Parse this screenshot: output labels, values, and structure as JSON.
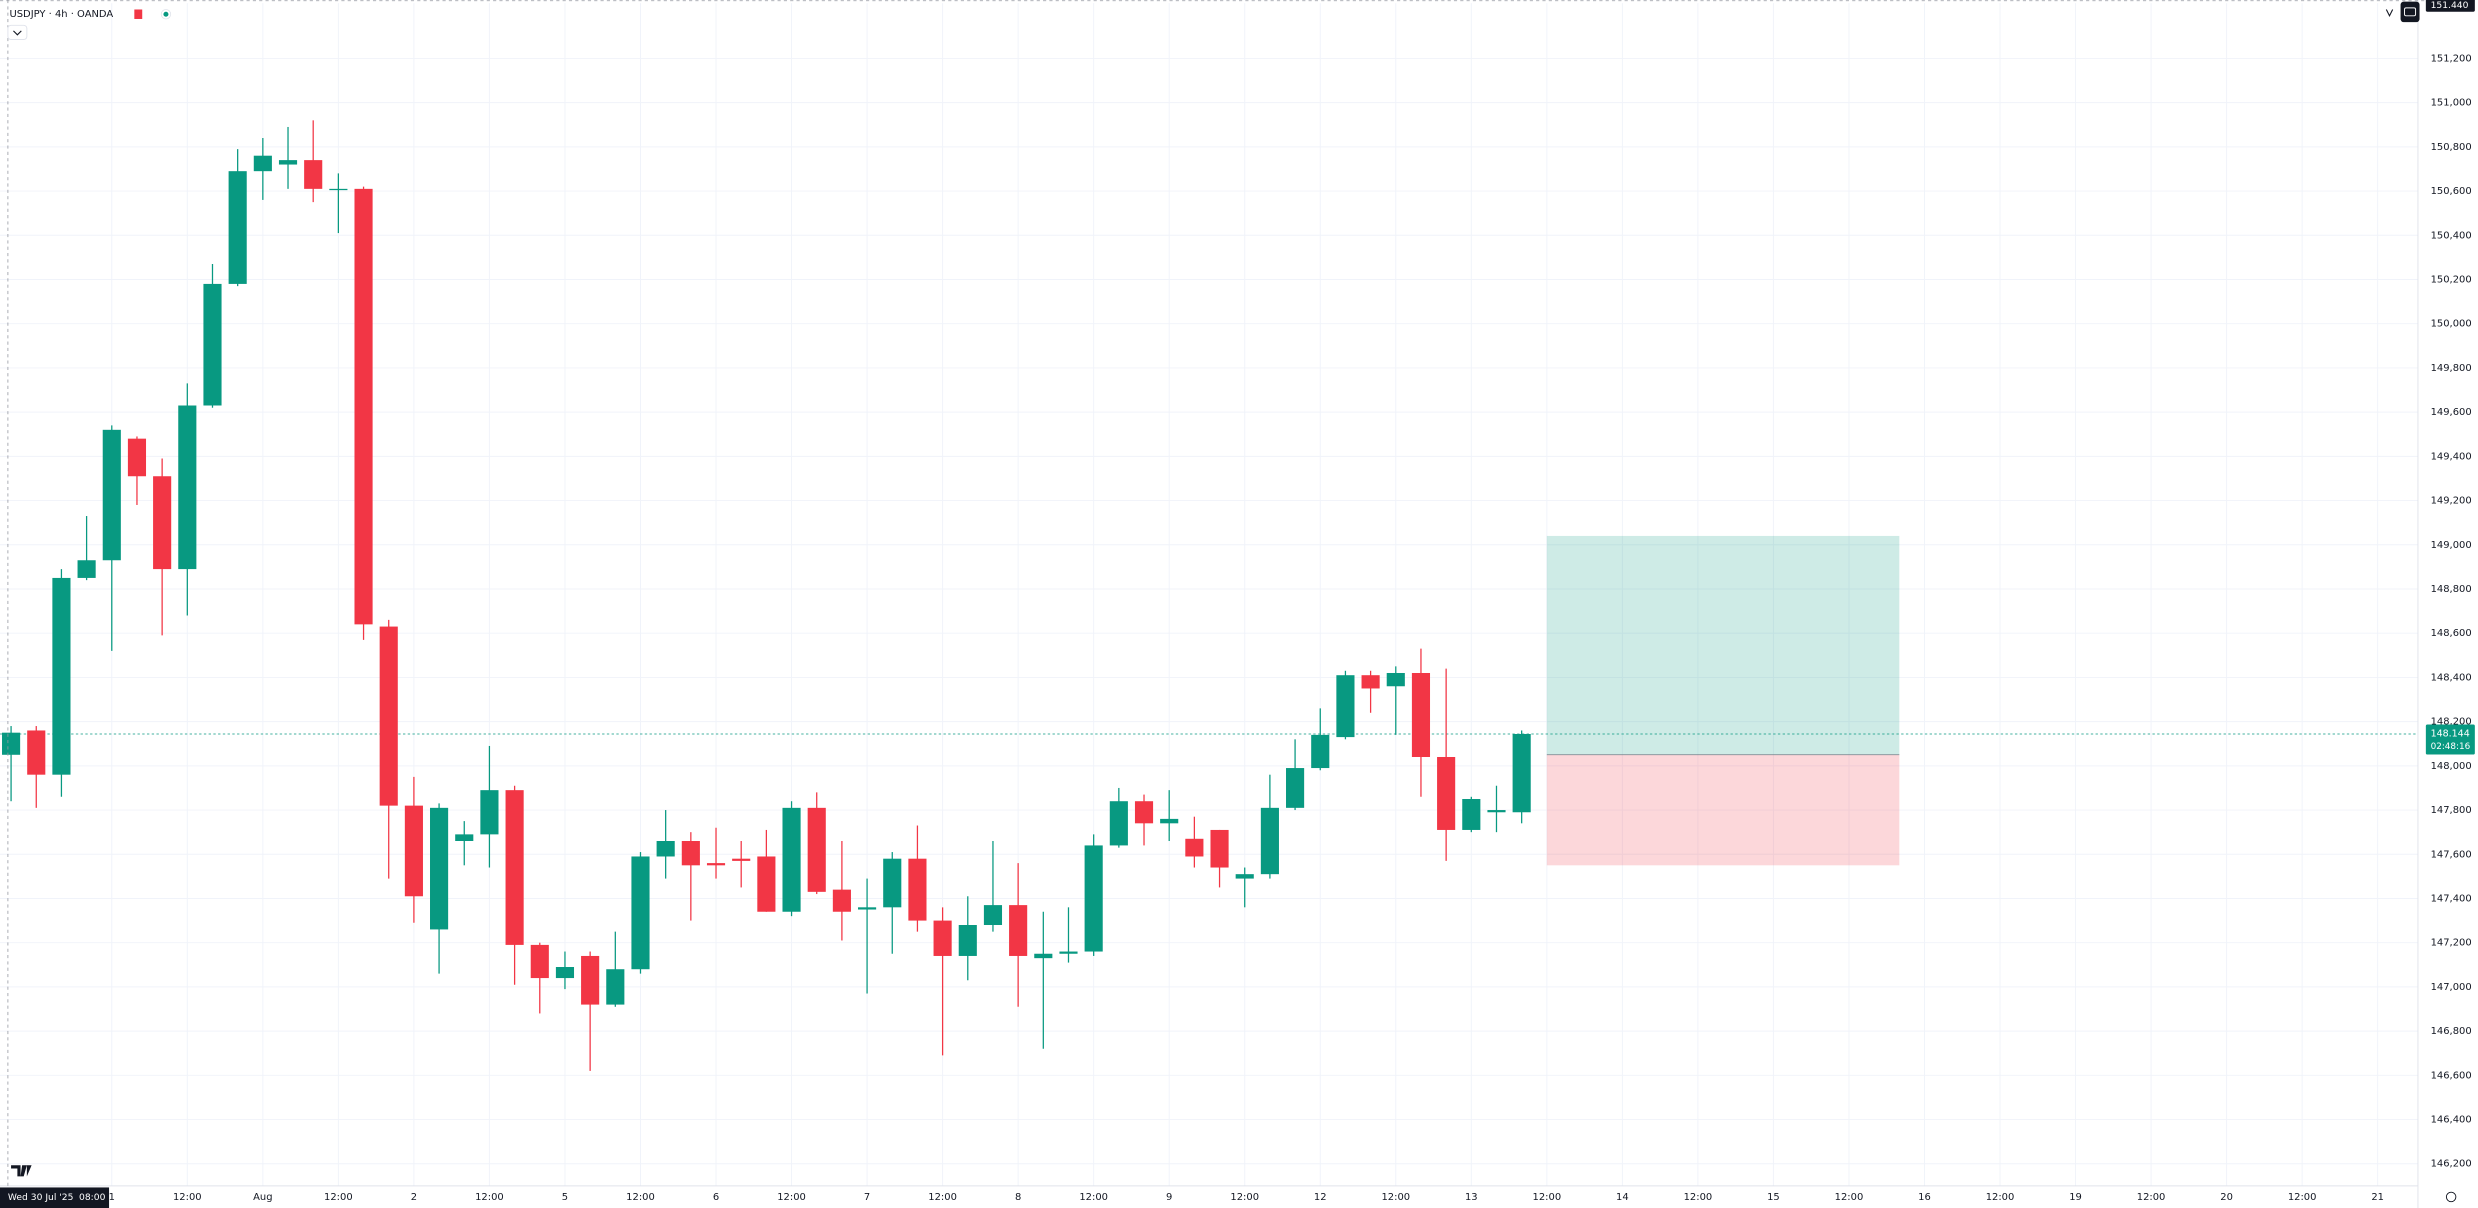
{
  "chart_data": {
    "type": "candlestick",
    "title": "USDJPY · 4h · OANDA",
    "up_color": "#089981",
    "down_color": "#f23645",
    "open": [
      148.05,
      148.16,
      147.96,
      148.85,
      148.93,
      149.48,
      149.31,
      148.89,
      149.63,
      150.18,
      150.69,
      150.72,
      150.74,
      150.61,
      150.61,
      148.63,
      147.82,
      147.26,
      147.66,
      147.69,
      147.89,
      147.19,
      147.04,
      147.14,
      146.92,
      147.08,
      147.59,
      147.66,
      147.56,
      147.58,
      147.59,
      147.34,
      147.81,
      147.44,
      147.35,
      147.36,
      147.58,
      147.3,
      147.14,
      147.28,
      147.37,
      147.13,
      147.15,
      147.16,
      147.64,
      147.84,
      147.74,
      147.67,
      147.71,
      147.49,
      147.51,
      147.81,
      147.99,
      148.13,
      148.41,
      148.36,
      148.42,
      148.04,
      147.71,
      147.79,
      147.79
    ],
    "high": [
      148.18,
      148.18,
      148.89,
      149.13,
      149.54,
      149.49,
      149.39,
      149.73,
      150.27,
      150.79,
      150.84,
      150.89,
      150.92,
      150.68,
      150.62,
      148.66,
      147.95,
      147.83,
      147.75,
      148.09,
      147.91,
      147.2,
      147.16,
      147.16,
      147.25,
      147.61,
      147.8,
      147.7,
      147.72,
      147.66,
      147.71,
      147.84,
      147.88,
      147.66,
      147.49,
      147.61,
      147.73,
      147.36,
      147.41,
      147.66,
      147.56,
      147.34,
      147.36,
      147.69,
      147.9,
      147.87,
      147.89,
      147.77,
      147.71,
      147.54,
      147.96,
      148.12,
      148.26,
      148.43,
      148.43,
      148.45,
      148.53,
      148.44,
      147.86,
      147.91,
      148.16
    ],
    "low": [
      147.84,
      147.81,
      147.86,
      148.84,
      148.52,
      149.18,
      148.59,
      148.68,
      149.62,
      150.17,
      150.56,
      150.61,
      150.55,
      150.41,
      148.57,
      147.49,
      147.29,
      147.06,
      147.55,
      147.54,
      147.01,
      146.88,
      146.99,
      146.62,
      146.91,
      147.06,
      147.49,
      147.3,
      147.49,
      147.45,
      147.34,
      147.32,
      147.42,
      147.21,
      146.97,
      147.15,
      147.25,
      146.69,
      147.03,
      147.25,
      146.91,
      146.72,
      147.11,
      147.14,
      147.63,
      147.64,
      147.66,
      147.54,
      147.45,
      147.36,
      147.49,
      147.8,
      147.98,
      148.12,
      148.24,
      148.14,
      147.86,
      147.57,
      147.7,
      147.7,
      147.74
    ],
    "close": [
      148.15,
      147.96,
      148.85,
      148.93,
      149.52,
      149.31,
      148.89,
      149.63,
      150.18,
      150.69,
      150.76,
      150.74,
      150.61,
      150.61,
      148.64,
      147.82,
      147.41,
      147.81,
      147.69,
      147.89,
      147.19,
      147.04,
      147.09,
      146.92,
      147.08,
      147.59,
      147.66,
      147.55,
      147.55,
      147.57,
      147.34,
      147.81,
      147.43,
      147.34,
      147.36,
      147.58,
      147.3,
      147.14,
      147.28,
      147.37,
      147.14,
      147.15,
      147.16,
      147.64,
      147.84,
      147.74,
      147.76,
      147.59,
      147.54,
      147.51,
      147.81,
      147.99,
      148.14,
      148.41,
      148.35,
      148.42,
      148.04,
      147.71,
      147.85,
      147.8,
      148.144
    ],
    "xlim": [
      -0.44,
      95.6
    ],
    "xticks": [
      {
        "value": 4,
        "label": "1"
      },
      {
        "value": 7,
        "label": "12:00"
      },
      {
        "value": 10,
        "label": "Aug"
      },
      {
        "value": 13,
        "label": "12:00"
      },
      {
        "value": 16,
        "label": "2"
      },
      {
        "value": 19,
        "label": "12:00"
      },
      {
        "value": 22,
        "label": "5"
      },
      {
        "value": 25,
        "label": "12:00"
      },
      {
        "value": 28,
        "label": "6"
      },
      {
        "value": 31,
        "label": "12:00"
      },
      {
        "value": 34,
        "label": "7"
      },
      {
        "value": 37,
        "label": "12:00"
      },
      {
        "value": 40,
        "label": "8"
      },
      {
        "value": 43,
        "label": "12:00"
      },
      {
        "value": 46,
        "label": "9"
      },
      {
        "value": 49,
        "label": "12:00"
      },
      {
        "value": 52,
        "label": "12"
      },
      {
        "value": 55,
        "label": "12:00"
      },
      {
        "value": 58,
        "label": "13"
      },
      {
        "value": 61,
        "label": "12:00"
      },
      {
        "value": 64,
        "label": "14"
      },
      {
        "value": 67,
        "label": "12:00"
      },
      {
        "value": 70,
        "label": "15"
      },
      {
        "value": 73,
        "label": "12:00"
      },
      {
        "value": 76,
        "label": "16"
      },
      {
        "value": 79,
        "label": "12:00"
      },
      {
        "value": 82,
        "label": "19"
      },
      {
        "value": 85,
        "label": "12:00"
      },
      {
        "value": 88,
        "label": "20"
      },
      {
        "value": 91,
        "label": "12:00"
      },
      {
        "value": 94,
        "label": "21"
      }
    ],
    "ylim": [
      146.1,
      151.45
    ],
    "yticks": [
      {
        "value": 146.2,
        "label": "146,200"
      },
      {
        "value": 146.4,
        "label": "146,400"
      },
      {
        "value": 146.6,
        "label": "146,600"
      },
      {
        "value": 146.8,
        "label": "146,800"
      },
      {
        "value": 147.0,
        "label": "147,000"
      },
      {
        "value": 147.2,
        "label": "147,200"
      },
      {
        "value": 147.4,
        "label": "147,400"
      },
      {
        "value": 147.6,
        "label": "147,600"
      },
      {
        "value": 147.8,
        "label": "147,800"
      },
      {
        "value": 148.0,
        "label": "148,000"
      },
      {
        "value": 148.2,
        "label": "148,200"
      },
      {
        "value": 148.4,
        "label": "148,400"
      },
      {
        "value": 148.6,
        "label": "148,600"
      },
      {
        "value": 148.8,
        "label": "148,800"
      },
      {
        "value": 149.0,
        "label": "149,000"
      },
      {
        "value": 149.2,
        "label": "149,200"
      },
      {
        "value": 149.4,
        "label": "149,400"
      },
      {
        "value": 149.6,
        "label": "149,600"
      },
      {
        "value": 149.8,
        "label": "149,800"
      },
      {
        "value": 150.0,
        "label": "150,000"
      },
      {
        "value": 150.2,
        "label": "150,200"
      },
      {
        "value": 150.4,
        "label": "150,400"
      },
      {
        "value": 150.6,
        "label": "150,600"
      },
      {
        "value": 150.8,
        "label": "150,800"
      },
      {
        "value": 151.0,
        "label": "151,000"
      },
      {
        "value": 151.2,
        "label": "151,200"
      }
    ],
    "grid": true,
    "position": {
      "start": 61,
      "end": 75,
      "entry": 148.05,
      "target": 149.04,
      "stop": 147.55
    },
    "last_price": {
      "value": 148.144,
      "label": "148.144"
    },
    "countdown": "02:48:16",
    "high_marker": {
      "value": 151.44,
      "label": "151.440"
    },
    "crosshair_date": "Wed 30 Jul '25",
    "crosshair_time": "08:00"
  }
}
